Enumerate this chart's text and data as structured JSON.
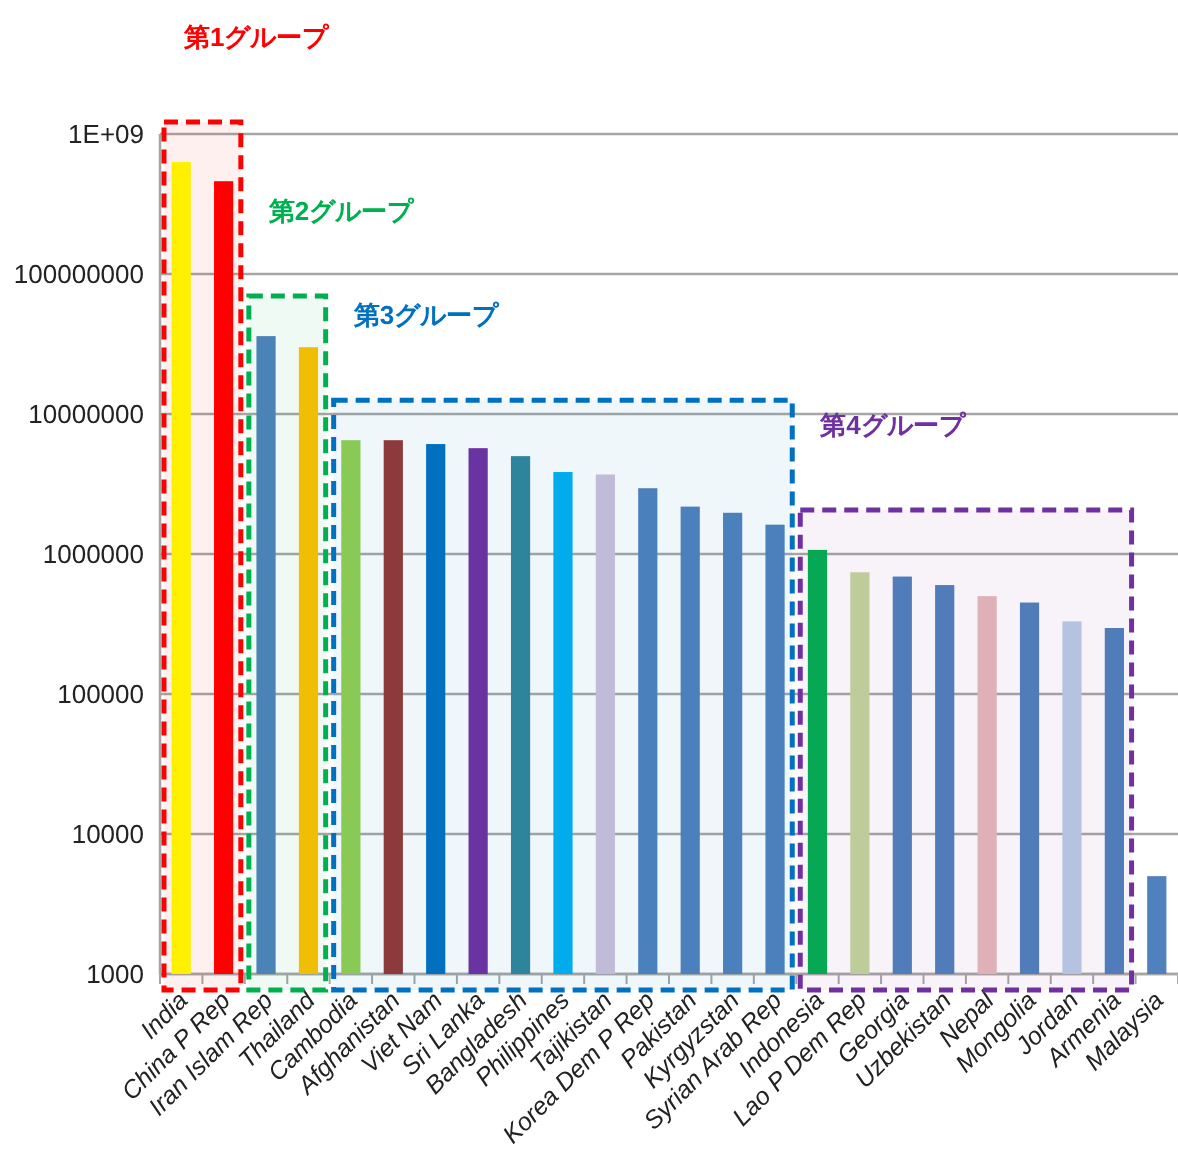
{
  "chart_data": {
    "type": "bar",
    "categories": [
      "India",
      "China P Rep",
      "Iran Islam Rep",
      "Thailand",
      "Cambodia",
      "Afghanistan",
      "Viet Nam",
      "Sri Lanka",
      "Bangladesh",
      "Philippines",
      "Tajikistan",
      "Korea Dem P Rep",
      "Pakistan",
      "Kyrgyzstan",
      "Syrian Arab Rep",
      "Indonesia",
      "Lao P Dem Rep",
      "Georgia",
      "Uzbekistan",
      "Nepal",
      "Mongolia",
      "Jordan",
      "Armenia",
      "Malaysia"
    ],
    "values": [
      630000000,
      460000000,
      36000000,
      30000000,
      6500000,
      6500000,
      6100000,
      5700000,
      5000000,
      3850000,
      3700000,
      2950000,
      2180000,
      1970000,
      1620000,
      1070000,
      740000,
      690000,
      600000,
      500000,
      450000,
      330000,
      296000,
      5000
    ],
    "colors": [
      "#ffff00",
      "#ff0000",
      "#4f81bd",
      "#ffc000",
      "#92d050",
      "#953735",
      "#0070c0",
      "#7030a0",
      "#31859c",
      "#00b0f0",
      "#ccc1da",
      "#4f81bd",
      "#4f81bd",
      "#4f81bd",
      "#4f81bd",
      "#00b050",
      "#c3d69b",
      "#4f81bd",
      "#4f81bd",
      "#e6b9b8",
      "#4f81bd",
      "#b9cde5",
      "#4f81bd",
      "#4f81bd"
    ],
    "log": true,
    "ylim": [
      1000,
      1000000000
    ],
    "yticks": [
      1000,
      10000,
      100000,
      1000000,
      10000000,
      100000000,
      {
        "value": 1000000000,
        "label": "1E+09"
      }
    ],
    "grid": "y",
    "bands": [
      {
        "axis": "x",
        "from": "India",
        "to": "China P Rep",
        "label": "第1グループ",
        "color": "#ff0000"
      },
      {
        "axis": "x",
        "from": "Iran Islam Rep",
        "to": "Thailand",
        "label": "第2グループ",
        "color": "#00b050"
      },
      {
        "axis": "x",
        "from": "Cambodia",
        "to": "Syrian Arab Rep",
        "label": "第3グループ",
        "color": "#0070c0"
      },
      {
        "axis": "x",
        "from": "Indonesia",
        "to": "Armenia",
        "label": "第4グループ",
        "color": "#7030a0"
      }
    ]
  }
}
